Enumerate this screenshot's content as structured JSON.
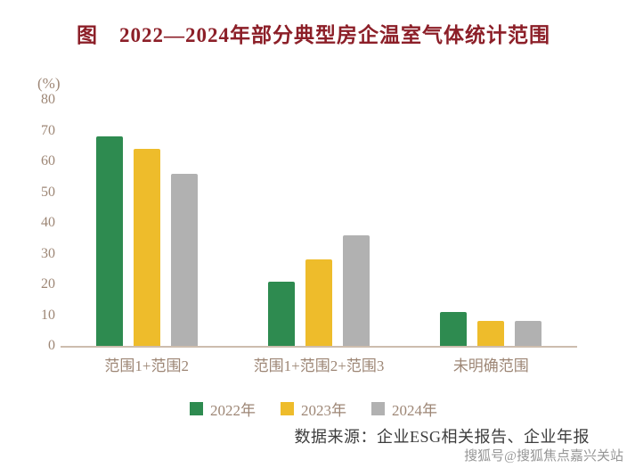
{
  "title": "图　2022—2024年部分典型房企温室气体统计范围",
  "chart_data": {
    "type": "bar",
    "title": "图　2022—2024年部分典型房企温室气体统计范围",
    "xlabel": "",
    "ylabel": "(%)",
    "ylim": [
      0,
      80
    ],
    "ytick_step": 10,
    "grid": false,
    "legend_position": "bottom",
    "categories": [
      "范围1+范围2",
      "范围1+范围2+范围3",
      "未明确范围"
    ],
    "series": [
      {
        "name": "2022年",
        "color": "#2e8b50",
        "values": [
          68,
          21,
          11
        ]
      },
      {
        "name": "2023年",
        "color": "#eebc2b",
        "values": [
          64,
          28,
          8
        ]
      },
      {
        "name": "2024年",
        "color": "#b1b1b1",
        "values": [
          56,
          36,
          8
        ]
      }
    ]
  },
  "source_note": "数据来源：企业ESG相关报告、企业年报",
  "watermark": "搜狐号@搜狐焦点嘉兴关站",
  "colors": {
    "title": "#8c1f28",
    "axis_text": "#9d8675",
    "baseline": "#cdbdae",
    "source_text": "#3d3d3d",
    "watermark": "#8b8b8b"
  }
}
